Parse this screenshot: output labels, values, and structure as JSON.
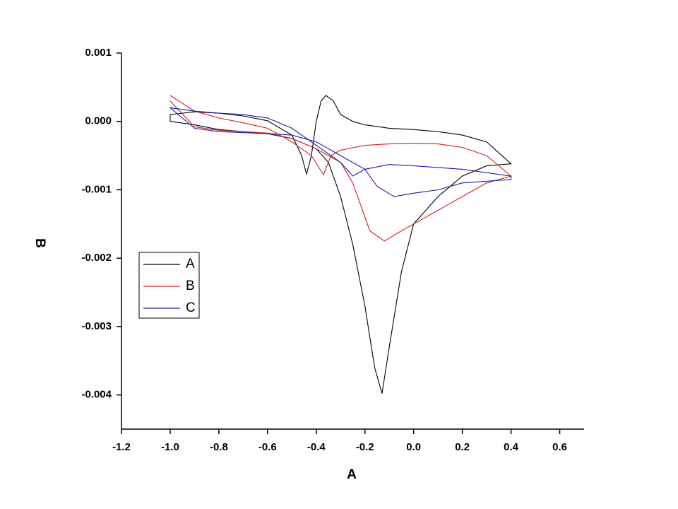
{
  "chart_data": {
    "type": "line",
    "xlabel": "A",
    "ylabel": "B",
    "xlim": [
      -1.2,
      0.7
    ],
    "xticks": [
      -1.2,
      {
        "value": -1.0,
        "label": "-1.0"
      },
      -0.8,
      -0.6,
      -0.4,
      -0.2,
      {
        "value": 0,
        "label": "0.0"
      },
      0.2,
      0.4,
      0.6
    ],
    "ylim": [
      -0.0045,
      0.001
    ],
    "yticks": [
      0.001,
      {
        "value": 0,
        "label": "0.000"
      },
      -0.001,
      -0.002,
      -0.003,
      -0.004
    ],
    "legend": "left",
    "series": [
      {
        "name": "A",
        "color": "#000000",
        "x": [
          -1.0,
          -0.9,
          -0.8,
          -0.7,
          -0.6,
          -0.5,
          -0.46,
          -0.44,
          -0.42,
          -0.4,
          -0.38,
          -0.36,
          -0.33,
          -0.3,
          -0.25,
          -0.2,
          -0.1,
          0.0,
          0.1,
          0.2,
          0.3,
          0.4,
          0.4,
          0.3,
          0.2,
          0.1,
          0.0,
          -0.05,
          -0.1,
          -0.13,
          -0.16,
          -0.2,
          -0.25,
          -0.3,
          -0.35,
          -0.4,
          -0.5,
          -0.6,
          -0.7,
          -0.8,
          -0.9,
          -1.0,
          -1.0
        ],
        "values": [
          0.0001,
          0.00014,
          0.00012,
          8e-05,
          1e-05,
          -0.0002,
          -0.0005,
          -0.00077,
          -0.0005,
          0.0,
          0.0003,
          0.00038,
          0.0003,
          0.0001,
          0.0,
          -5e-05,
          -0.0001,
          -0.00012,
          -0.00015,
          -0.0002,
          -0.0003,
          -0.00062,
          -0.00062,
          -0.00065,
          -0.0008,
          -0.0011,
          -0.0015,
          -0.0022,
          -0.0033,
          -0.00398,
          -0.0036,
          -0.0027,
          -0.0018,
          -0.0011,
          -0.0006,
          -0.0004,
          -0.00025,
          -0.00018,
          -0.00015,
          -0.00012,
          -5e-05,
          0.0,
          0.0001
        ]
      },
      {
        "name": "B",
        "color": "#d42020",
        "x": [
          -1.0,
          -0.9,
          -0.8,
          -0.7,
          -0.6,
          -0.5,
          -0.42,
          -0.37,
          -0.34,
          -0.3,
          -0.2,
          -0.1,
          0.0,
          0.1,
          0.2,
          0.3,
          0.4,
          0.3,
          0.2,
          0.1,
          0.0,
          -0.05,
          -0.12,
          -0.18,
          -0.2,
          -0.25,
          -0.3,
          -0.4,
          -0.5,
          -0.6,
          -0.8,
          -0.9,
          -1.0
        ],
        "values": [
          0.00038,
          0.00015,
          5e-05,
          -2e-05,
          -0.0001,
          -0.0003,
          -0.0005,
          -0.00078,
          -0.0005,
          -0.00042,
          -0.00035,
          -0.00033,
          -0.00032,
          -0.00033,
          -0.00038,
          -0.0005,
          -0.0008,
          -0.0009,
          -0.0011,
          -0.0013,
          -0.0015,
          -0.0016,
          -0.00175,
          -0.0016,
          -0.0014,
          -0.0009,
          -0.0006,
          -0.0004,
          -0.00025,
          -0.00017,
          -0.00013,
          -8e-05,
          0.0003
        ]
      },
      {
        "name": "C",
        "color": "#1a1aa8",
        "x": [
          -1.0,
          -0.9,
          -0.8,
          -0.7,
          -0.6,
          -0.5,
          -0.4,
          -0.3,
          -0.25,
          -0.2,
          -0.1,
          0.0,
          0.2,
          0.4,
          0.4,
          0.2,
          0.1,
          0.0,
          -0.08,
          -0.15,
          -0.2,
          -0.3,
          -0.4,
          -0.5,
          -0.6,
          -0.8,
          -0.9,
          -1.0
        ],
        "values": [
          0.0002,
          0.00015,
          0.00012,
          0.0001,
          5e-05,
          -0.0001,
          -0.00035,
          -0.0006,
          -0.0008,
          -0.0007,
          -0.00063,
          -0.00065,
          -0.0007,
          -0.0008,
          -0.00085,
          -0.0009,
          -0.001,
          -0.00105,
          -0.0011,
          -0.00095,
          -0.0007,
          -0.0005,
          -0.0003,
          -0.0002,
          -0.00018,
          -0.00015,
          -0.0001,
          0.0002
        ]
      }
    ]
  }
}
